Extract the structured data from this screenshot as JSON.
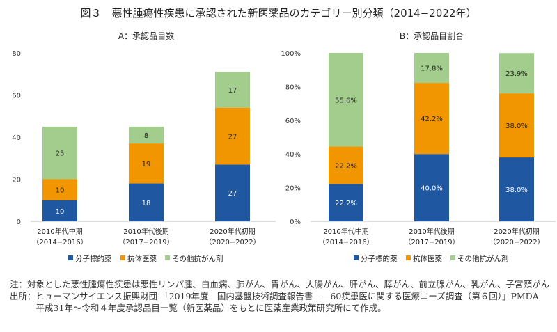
{
  "title": "図３　悪性腫瘍性疾患に承認された新医薬品のカテゴリー別分類（2014−2022年）",
  "colors": {
    "molecular": "#1f57a0",
    "antibody": "#f29600",
    "other": "#a3cd8c"
  },
  "legend": [
    "分子標的薬",
    "抗体医薬",
    "その他抗がん剤"
  ],
  "chart_data": [
    {
      "type": "bar",
      "stacked": true,
      "title": "A：承認品目数",
      "categories": [
        [
          "2010年代中期",
          "（2014−2016）"
        ],
        [
          "2010年代後期",
          "（2017−2019）"
        ],
        [
          "2020年代初期",
          "（2020−2022）"
        ]
      ],
      "ylim": [
        0,
        80
      ],
      "yticks": [
        "0",
        "20",
        "40",
        "60",
        "80"
      ],
      "grid": false,
      "legend_position": "bottom",
      "series": [
        {
          "name": "分子標的薬",
          "values": [
            10,
            18,
            27
          ],
          "labels": [
            "10",
            "18",
            "27"
          ]
        },
        {
          "name": "抗体医薬",
          "values": [
            10,
            19,
            27
          ],
          "labels": [
            "10",
            "19",
            "27"
          ]
        },
        {
          "name": "その他抗がん剤",
          "values": [
            25,
            8,
            17
          ],
          "labels": [
            "25",
            "8",
            "17"
          ]
        }
      ]
    },
    {
      "type": "bar",
      "stacked": true,
      "title": "B：承認品目割合",
      "categories": [
        [
          "2010年代中期",
          "（2014−2016）"
        ],
        [
          "2010年代後期",
          "（2017−2019）"
        ],
        [
          "2020年代初期",
          "（2020−2022）"
        ]
      ],
      "ylim": [
        0,
        100
      ],
      "yticks": [
        "0%",
        "20%",
        "40%",
        "60%",
        "80%",
        "100%"
      ],
      "grid": false,
      "legend_position": "bottom",
      "series": [
        {
          "name": "分子標的薬",
          "values": [
            22.2,
            40.0,
            38.0
          ],
          "labels": [
            "22.2%",
            "40.0%",
            "38.0%"
          ]
        },
        {
          "name": "抗体医薬",
          "values": [
            22.2,
            42.2,
            38.0
          ],
          "labels": [
            "22.2%",
            "42.2%",
            "38.0%"
          ]
        },
        {
          "name": "その他抗がん剤",
          "values": [
            55.6,
            17.8,
            23.9
          ],
          "labels": [
            "55.6%",
            "17.8%",
            "23.9%"
          ]
        }
      ]
    }
  ],
  "notes": {
    "note_label": "注：",
    "note_text": "対象とした悪性腫瘍性疾患は悪性リンパ腫、白血病、肺がん、胃がん、大腸がん、肝がん、膵がん、前立腺がん、乳がん、子宮頸がん",
    "source_label": "出所：",
    "source_text": "ヒューマンサイエンス振興財団 「2019年度　国内基盤技術調査報告書　―60疾患医に関する医療ニーズ調査（第６回）」PMDA　平成31年〜令和４年度承認品目一覧（新医薬品）をもとに医薬産業政策研究所にて作成。"
  }
}
